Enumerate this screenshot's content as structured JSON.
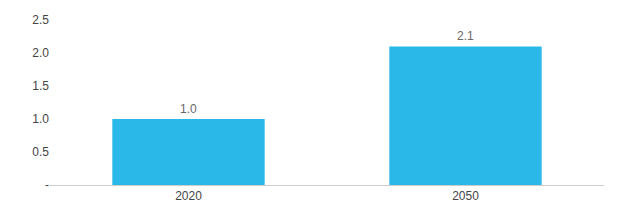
{
  "chart_data": {
    "type": "bar",
    "categories": [
      "2020",
      "2050"
    ],
    "values": [
      1.0,
      2.1
    ],
    "value_labels": [
      "1.0",
      "2.1"
    ],
    "data_labels": true,
    "color": "#29b8e8",
    "ylim": [
      0,
      2.5
    ],
    "yticks": [
      {
        "value": 0,
        "label": "-"
      },
      0.5,
      {
        "value": 1.0,
        "label": "1.0"
      },
      1.5,
      {
        "value": 2.0,
        "label": "2.0"
      },
      2.5
    ],
    "grid": false
  }
}
